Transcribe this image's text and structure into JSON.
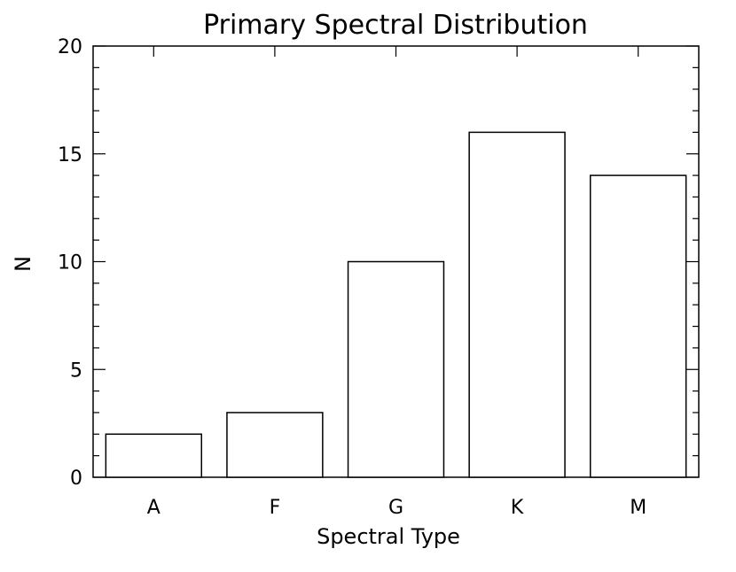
{
  "chart_data": {
    "type": "bar",
    "title": "Primary Spectral Distribution",
    "xlabel": "Spectral Type",
    "ylabel": "N",
    "categories": [
      "A",
      "F",
      "G",
      "K",
      "M"
    ],
    "values": [
      2,
      3,
      10,
      16,
      14
    ],
    "ylim": [
      0,
      20
    ],
    "yticks": [
      0,
      5,
      10,
      15,
      20
    ],
    "y_minor_step": 1,
    "grid": false,
    "bar_fill": "#ffffff",
    "bar_stroke": "#000000"
  }
}
